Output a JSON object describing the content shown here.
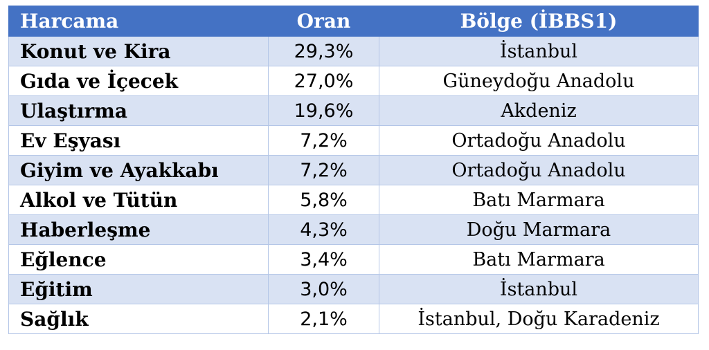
{
  "header": {
    "col1": "Harcama",
    "col2": "Oran",
    "col3": "Bölge (İBBS1)"
  },
  "rows": [
    {
      "category": "Konut ve Kira",
      "ratio": "29,3%",
      "region": "İstanbul"
    },
    {
      "category": "Gıda ve İçecek",
      "ratio": "27,0%",
      "region": "Güneydoğu Anadolu"
    },
    {
      "category": "Ulaştırma",
      "ratio": "19,6%",
      "region": "Akdeniz"
    },
    {
      "category": "Ev Eşyası",
      "ratio": "7,2%",
      "region": "Ortadoğu Anadolu"
    },
    {
      "category": "Giyim ve Ayakkabı",
      "ratio": "7,2%",
      "region": "Ortadoğu Anadolu"
    },
    {
      "category": "Alkol ve Tütün",
      "ratio": "5,8%",
      "region": "Batı Marmara"
    },
    {
      "category": "Haberleşme",
      "ratio": "4,3%",
      "region": "Doğu Marmara"
    },
    {
      "category": "Eğlence",
      "ratio": "3,4%",
      "region": "Batı Marmara"
    },
    {
      "category": "Eğitim",
      "ratio": "3,0%",
      "region": "İstanbul"
    },
    {
      "category": "Sağlık",
      "ratio": "2,1%",
      "region": "İstanbul, Doğu Karadeniz"
    }
  ],
  "colors": {
    "header_bg": "#4472c4",
    "band_bg": "#d9e2f3",
    "border": "#b4c6e7"
  }
}
